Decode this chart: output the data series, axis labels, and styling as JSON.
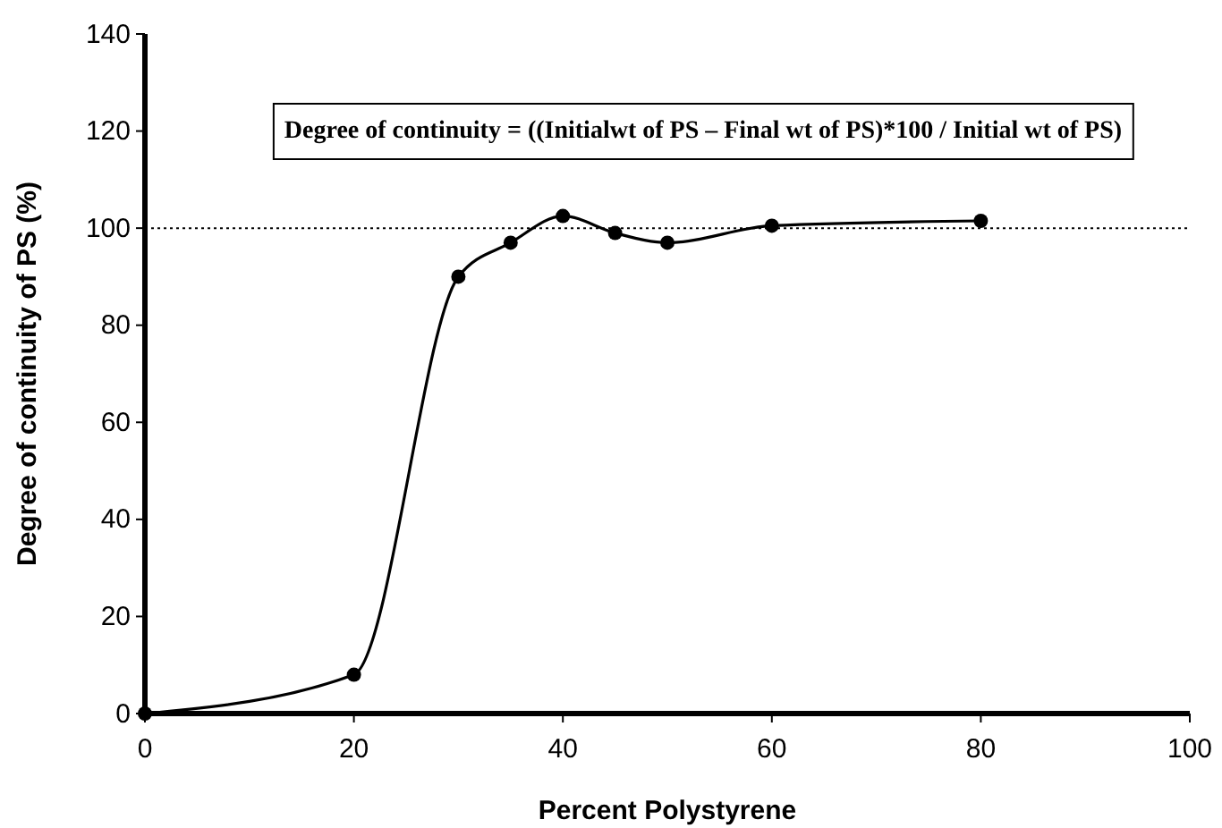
{
  "chart_data": {
    "type": "line",
    "xlabel": "Percent Polystyrene",
    "ylabel": "Degree of continuity of PS (%)",
    "x": [
      0,
      20,
      30,
      35,
      40,
      45,
      50,
      60,
      80
    ],
    "series": [
      {
        "color": "#000000",
        "values": [
          0,
          8,
          90,
          97,
          102.5,
          99,
          97,
          100.5,
          101.5
        ]
      }
    ],
    "xlim": [
      0,
      100
    ],
    "xticks": [
      0,
      20,
      40,
      60,
      80,
      100
    ],
    "ylim": [
      0,
      140
    ],
    "yticks": [
      0,
      20,
      40,
      60,
      80,
      100,
      120,
      140
    ],
    "ref_lines": [
      {
        "axis": "y",
        "value": 100,
        "line_style": "dotted",
        "color": "#000000"
      }
    ],
    "annotations": [
      "Degree of continuity = ((Initialwt of PS – Final wt of PS)*100 / Initial wt of PS)"
    ],
    "marker": "circle",
    "line_style": "solid",
    "grid": false
  }
}
